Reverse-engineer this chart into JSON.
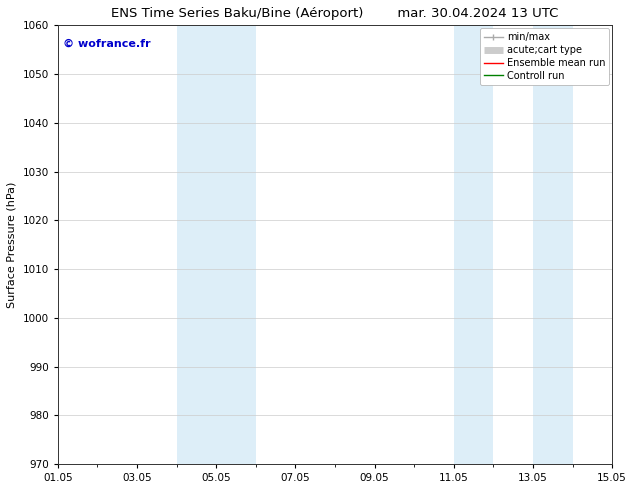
{
  "title_left": "ENS Time Series Baku/Bine (Aéroport)",
  "title_right": "mar. 30.04.2024 13 UTC",
  "ylabel": "Surface Pressure (hPa)",
  "ylim": [
    970,
    1060
  ],
  "yticks": [
    970,
    980,
    990,
    1000,
    1010,
    1020,
    1030,
    1040,
    1050,
    1060
  ],
  "xlim_days": [
    0,
    14
  ],
  "xtick_labels": [
    "01.05",
    "03.05",
    "05.05",
    "07.05",
    "09.05",
    "11.05",
    "13.05",
    "15.05"
  ],
  "xtick_positions": [
    0,
    2,
    4,
    6,
    8,
    10,
    12,
    14
  ],
  "shaded_bands": [
    {
      "x_start": 3.0,
      "x_end": 4.0,
      "color": "#ddeef8"
    },
    {
      "x_start": 4.0,
      "x_end": 5.0,
      "color": "#ddeef8"
    },
    {
      "x_start": 10.0,
      "x_end": 11.0,
      "color": "#ddeef8"
    },
    {
      "x_start": 12.0,
      "x_end": 13.0,
      "color": "#ddeef8"
    }
  ],
  "watermark_text": "© wofrance.fr",
  "watermark_color": "#0000cc",
  "background_color": "#ffffff",
  "plot_bg_color": "#ffffff",
  "grid_color": "#cccccc",
  "legend_entries": [
    {
      "label": "min/max",
      "color": "#aaaaaa",
      "lw": 1.0
    },
    {
      "label": "acute;cart type",
      "color": "#cccccc",
      "lw": 5
    },
    {
      "label": "Ensemble mean run",
      "color": "#ff0000",
      "lw": 1.0
    },
    {
      "label": "Controll run",
      "color": "#008000",
      "lw": 1.0
    }
  ],
  "title_fontsize": 9.5,
  "axis_label_fontsize": 8,
  "tick_fontsize": 7.5,
  "legend_fontsize": 7,
  "watermark_fontsize": 8
}
